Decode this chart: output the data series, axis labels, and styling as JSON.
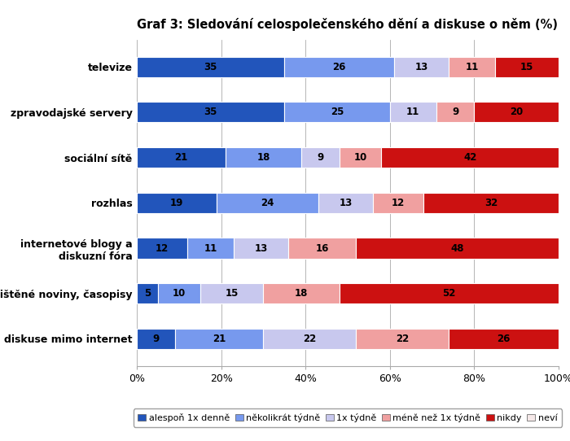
{
  "title": "Graf 3: Sledování celospolečenského dění a diskuse o něm (%)",
  "categories": [
    "televize",
    "zpravodajské servery",
    "sociální sítě",
    "rozhlas",
    "internetové blogy a\ndiskuzní fóra",
    "tištěné noviny, časopisy",
    "diskuse mimo internet"
  ],
  "series_labels": [
    "alespoň 1x denně",
    "několikrát týdně",
    "1x týdně",
    "méně než 1x týdně",
    "nikdy",
    "neví"
  ],
  "colors": [
    "#2255bb",
    "#7799ee",
    "#c8c8ee",
    "#f0a0a0",
    "#cc1111",
    "#f5e8e8"
  ],
  "data": [
    [
      35,
      26,
      13,
      11,
      15,
      0
    ],
    [
      35,
      25,
      11,
      9,
      20,
      0
    ],
    [
      21,
      18,
      9,
      10,
      42,
      0
    ],
    [
      19,
      24,
      13,
      12,
      32,
      0
    ],
    [
      12,
      11,
      13,
      16,
      48,
      0
    ],
    [
      5,
      10,
      15,
      18,
      52,
      0
    ],
    [
      9,
      21,
      22,
      22,
      26,
      0
    ]
  ],
  "xlim": [
    0,
    100
  ],
  "xticks": [
    0,
    20,
    40,
    60,
    80,
    100
  ],
  "xtick_labels": [
    "0%",
    "20%",
    "40%",
    "60%",
    "80%",
    "100%"
  ],
  "bar_height": 0.45,
  "title_fontsize": 10.5,
  "tick_fontsize": 9,
  "legend_fontsize": 8,
  "value_fontsize": 8.5,
  "bg_color": "#f5f5f5"
}
